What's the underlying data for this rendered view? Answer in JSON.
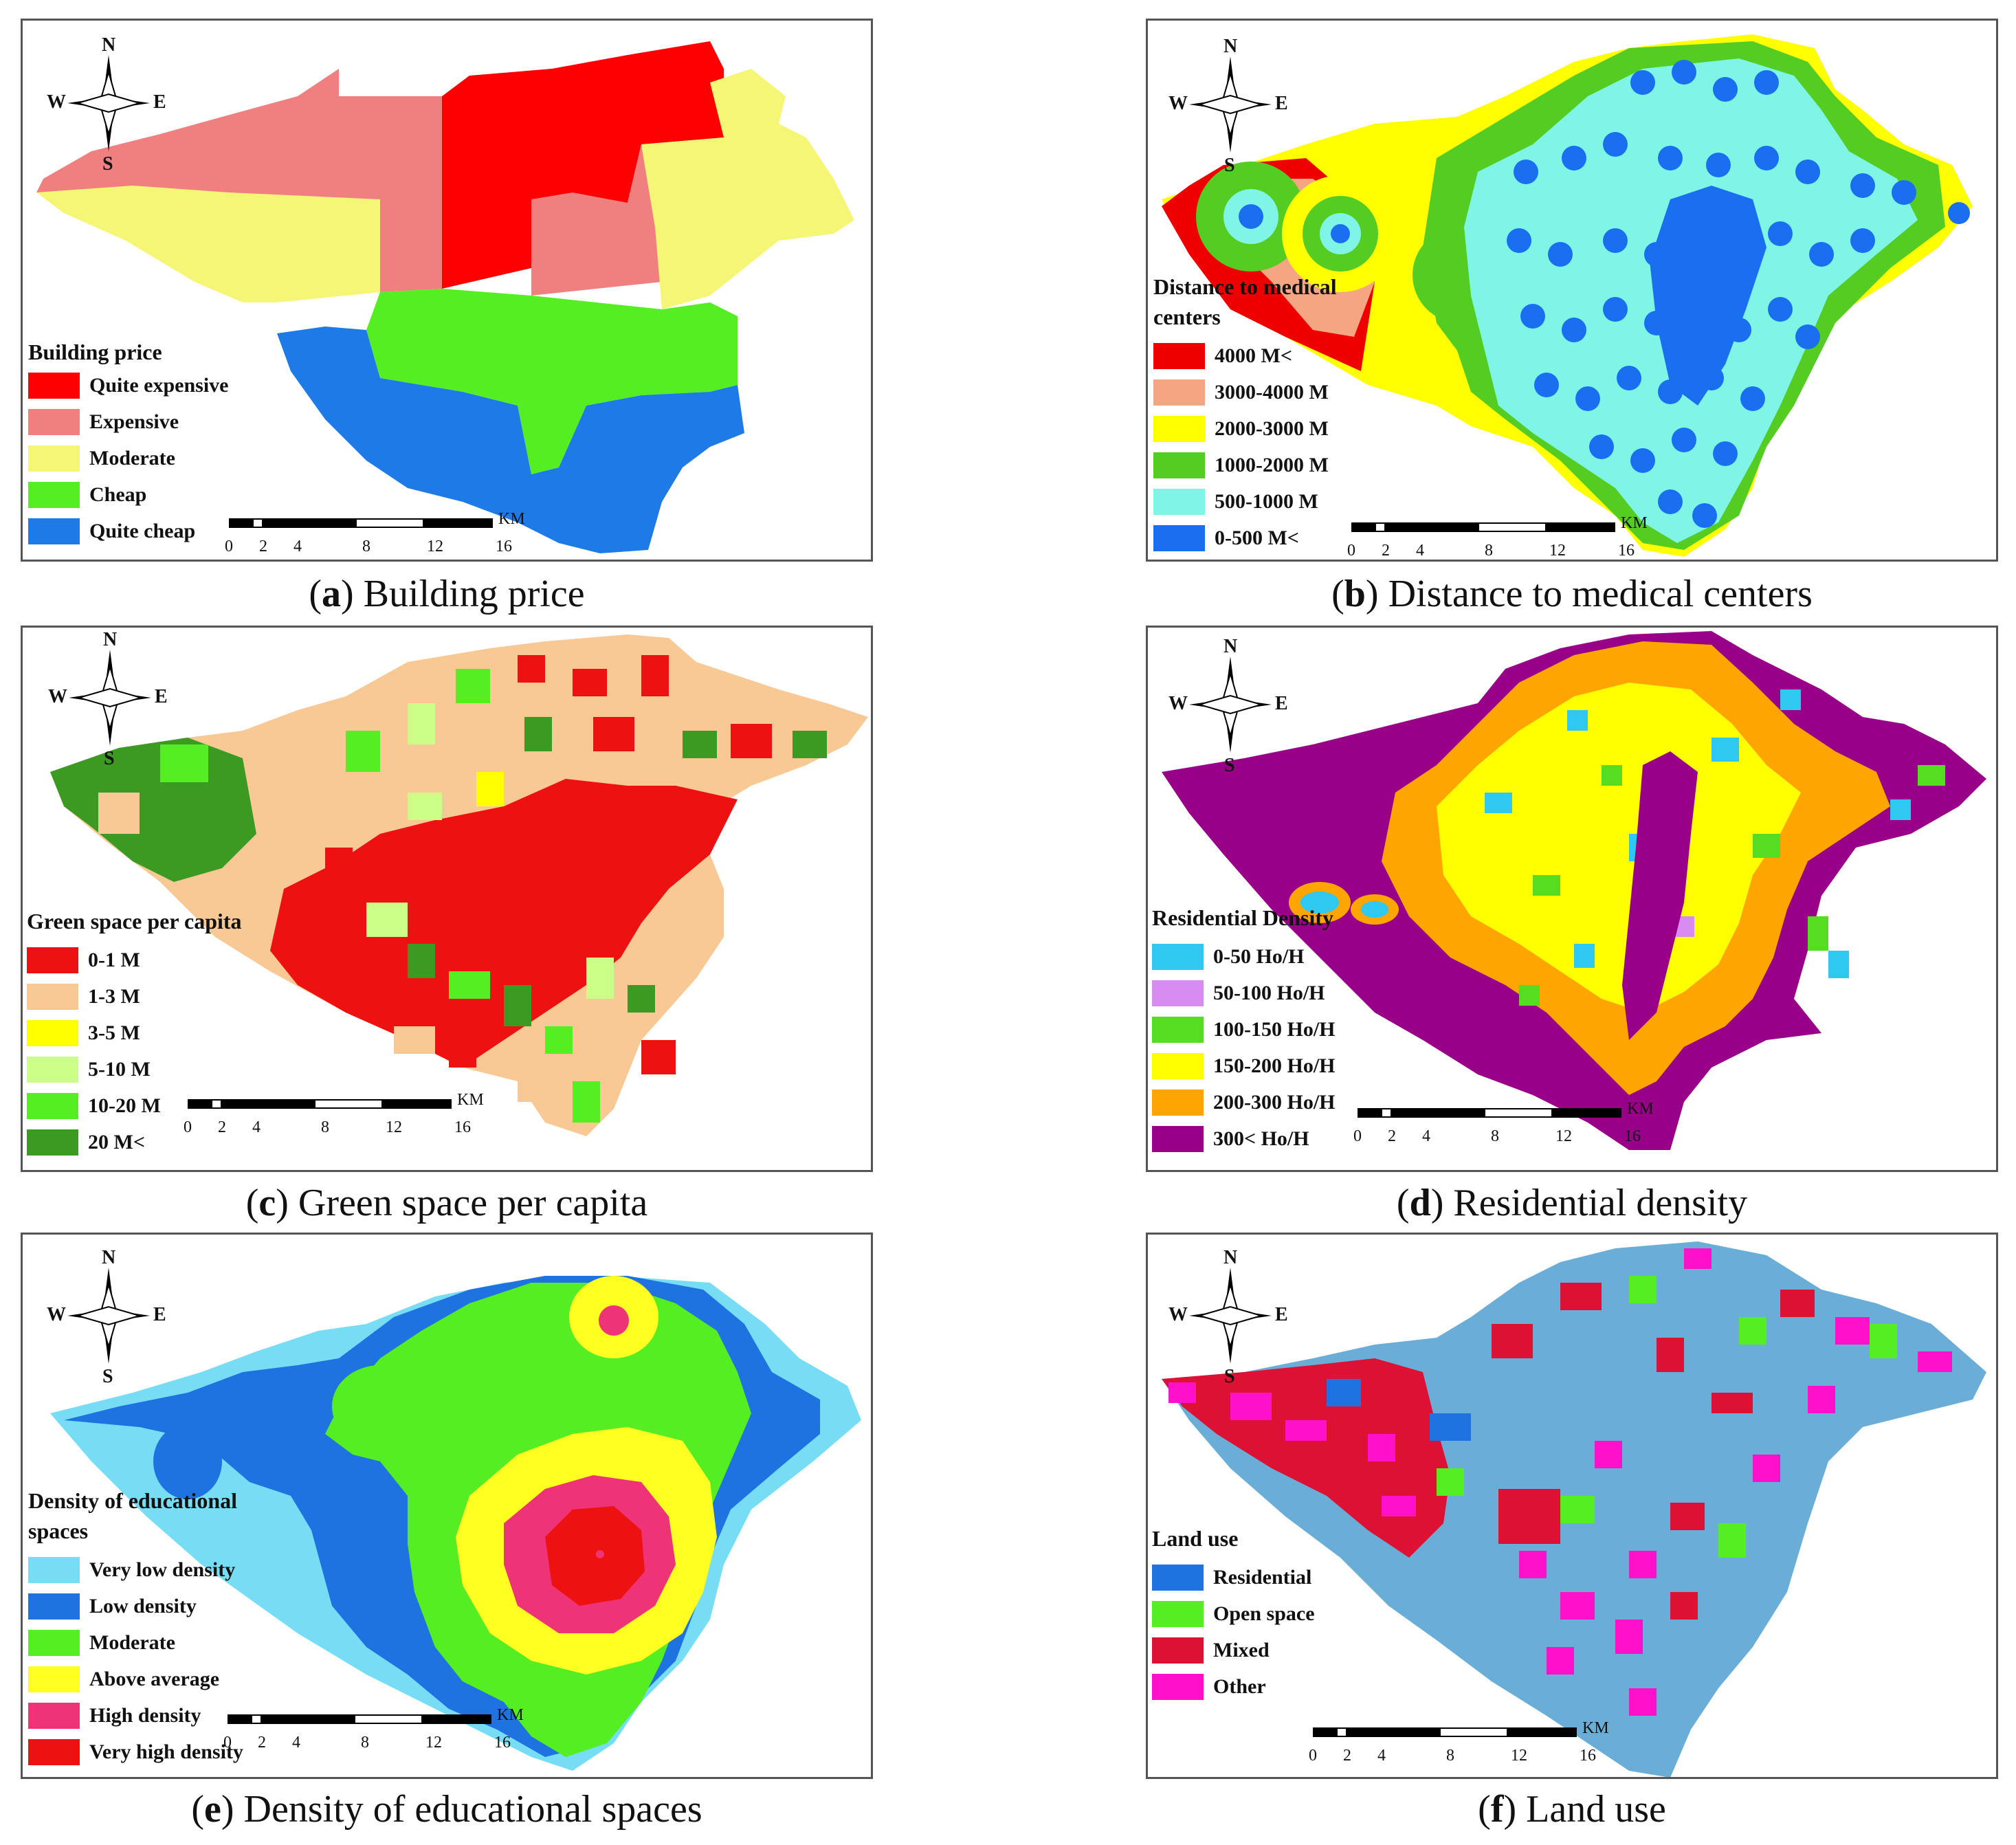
{
  "panels": [
    {
      "caption_letter": "a",
      "caption_text": " Building price",
      "legend_title": "Building price",
      "legend": [
        {
          "label": "Quite expensive",
          "color": "#ff0000"
        },
        {
          "label": "Expensive",
          "color": "#f08080"
        },
        {
          "label": "Moderate",
          "color": "#f5f576"
        },
        {
          "label": "Cheap",
          "color": "#55ee22"
        },
        {
          "label": "Quite cheap",
          "color": "#1e7ae6"
        }
      ]
    },
    {
      "caption_letter": "b",
      "caption_text": " Distance to medical centers",
      "legend_title": "Distance to medical centers",
      "legend": [
        {
          "label": "4000 M<",
          "color": "#ee0000"
        },
        {
          "label": "3000-4000 M",
          "color": "#f4a582"
        },
        {
          "label": "2000-3000 M",
          "color": "#ffff00"
        },
        {
          "label": "1000-2000 M",
          "color": "#55cc22"
        },
        {
          "label": "500-1000 M",
          "color": "#7ff5e6"
        },
        {
          "label": "0-500 M<",
          "color": "#1a6ff0"
        }
      ]
    },
    {
      "caption_letter": "c",
      "caption_text": " Green space per capita",
      "legend_title": "Green space per capita",
      "legend": [
        {
          "label": "0-1 M",
          "color": "#ee1111"
        },
        {
          "label": "1-3 M",
          "color": "#f8c994"
        },
        {
          "label": "3-5 M",
          "color": "#ffff00"
        },
        {
          "label": "5-10 M",
          "color": "#ccff88"
        },
        {
          "label": "10-20 M",
          "color": "#55ee22"
        },
        {
          "label": "20 M<",
          "color": "#3a9a22"
        }
      ]
    },
    {
      "caption_letter": "d",
      "caption_text": " Residential density",
      "legend_title": "Residential Density",
      "legend": [
        {
          "label": "0-50 Ho/H",
          "color": "#2ec8f0"
        },
        {
          "label": "50-100 Ho/H",
          "color": "#d98cf0"
        },
        {
          "label": "100-150 Ho/H",
          "color": "#55dd22"
        },
        {
          "label": "150-200 Ho/H",
          "color": "#ffff00"
        },
        {
          "label": "200-300 Ho/H",
          "color": "#ffa500"
        },
        {
          "label": "300< Ho/H",
          "color": "#990088"
        }
      ]
    },
    {
      "caption_letter": "e",
      "caption_text": " Density of educational spaces",
      "legend_title": "Density of educational spaces",
      "legend": [
        {
          "label": "Very low density",
          "color": "#77ddf5"
        },
        {
          "label": "Low density",
          "color": "#1e73e0"
        },
        {
          "label": "Moderate",
          "color": "#55ee22"
        },
        {
          "label": "Above average",
          "color": "#ffff22"
        },
        {
          "label": "High density",
          "color": "#ee3377"
        },
        {
          "label": "Very high density",
          "color": "#ee1111"
        }
      ]
    },
    {
      "caption_letter": "f",
      "caption_text": " Land use",
      "legend_title": "Land use",
      "legend": [
        {
          "label": "Residential",
          "color": "#1e73e0"
        },
        {
          "label": "Open space",
          "color": "#55ee22"
        },
        {
          "label": "Mixed",
          "color": "#dd1133"
        },
        {
          "label": "Other",
          "color": "#ff11cc"
        }
      ]
    }
  ],
  "compass": {
    "n": "N",
    "s": "S",
    "e": "E",
    "w": "W"
  },
  "scale": {
    "ticks": [
      "0",
      "2",
      "4",
      "8",
      "12",
      "16"
    ],
    "unit": "KM"
  }
}
